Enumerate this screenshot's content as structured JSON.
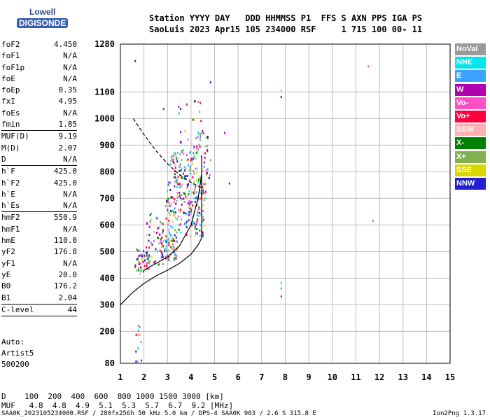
{
  "logo": {
    "line1": "Lowell",
    "line2": "DIGISONDE"
  },
  "header": {
    "line1": "Station YYYY DAY   DDD HHMMSS P1  FFS S AXN PPS IGA PS",
    "line2": "SaoLuis 2023 Apr15 105 234000 RSF     1 715 100 00- 11"
  },
  "params": [
    {
      "name": "foF2",
      "value": "4.450"
    },
    {
      "name": "foF1",
      "value": "N/A"
    },
    {
      "name": "foF1p",
      "value": "N/A"
    },
    {
      "name": "foE",
      "value": "N/A"
    },
    {
      "name": "foEp",
      "value": "0.35"
    },
    {
      "name": "fxI",
      "value": "4.95"
    },
    {
      "name": "foEs",
      "value": "N/A"
    },
    {
      "name": "fmin",
      "value": "1.85"
    },
    {
      "sep": true
    },
    {
      "name": "MUF(D)",
      "value": "9.19"
    },
    {
      "name": "M(D)",
      "value": "2.07"
    },
    {
      "name": "D",
      "value": "N/A"
    },
    {
      "sep": true
    },
    {
      "name": "h`F",
      "value": "425.0"
    },
    {
      "name": "h`F2",
      "value": "425.0"
    },
    {
      "name": "h`E",
      "value": "N/A"
    },
    {
      "name": "h`Es",
      "value": "N/A"
    },
    {
      "sep": true
    },
    {
      "name": "hmF2",
      "value": "550.9"
    },
    {
      "name": "hmF1",
      "value": "N/A"
    },
    {
      "name": "hmE",
      "value": "110.0"
    },
    {
      "name": "yF2",
      "value": "176.8"
    },
    {
      "name": "yF1",
      "value": "N/A"
    },
    {
      "name": "yE",
      "value": "20.0"
    },
    {
      "name": "B0",
      "value": "176.2"
    },
    {
      "name": "B1",
      "value": "2.04"
    },
    {
      "sep": true
    },
    {
      "name": "C-level",
      "value": "44"
    },
    {
      "sep": true
    }
  ],
  "auto": {
    "line1": "Auto:",
    "line2": "Artist5",
    "line3": "500200"
  },
  "legend": [
    {
      "label": "NoVal",
      "color": "#9a9a9a"
    },
    {
      "label": "NNE",
      "color": "#00e5ee"
    },
    {
      "label": "E",
      "color": "#3ea0ff"
    },
    {
      "label": "W",
      "color": "#b000b0"
    },
    {
      "label": "Vo-",
      "color": "#ff50c8"
    },
    {
      "label": "Vo+",
      "color": "#ff0040"
    },
    {
      "label": "SSW",
      "color": "#ffb0b0"
    },
    {
      "label": "X-",
      "color": "#008000"
    },
    {
      "label": "X+",
      "color": "#80b050"
    },
    {
      "label": "SSE",
      "color": "#d8d800"
    },
    {
      "label": "NNW",
      "color": "#2020d0"
    }
  ],
  "footer": {
    "d_line": "D    100  200  400  600  800 1000 1500 3000 [km]",
    "muf_line": "MUF   4.8  4.8  4.9  5.1  5.3  5.7  6.7  9.2 [MHz]",
    "file_line": "SAA0K_2023105234000.RSF / 280fx256h 50 kHz 5.0 km / DPS-4 SAA0K 903 / 2.6 S 315.8 E",
    "version": "Ion2Png 1.3.17"
  },
  "chart_data": {
    "type": "scatter",
    "x_range": [
      1,
      15
    ],
    "y_range": [
      80,
      1280
    ],
    "x_ticks": [
      1,
      2,
      3,
      4,
      5,
      6,
      7,
      8,
      9,
      10,
      11,
      12,
      13,
      14,
      15
    ],
    "y_ticks": [
      80,
      200,
      300,
      400,
      500,
      600,
      700,
      800,
      900,
      1000,
      1100,
      1280
    ],
    "grid": true,
    "lines": [
      {
        "style": "solid",
        "points": [
          [
            1.0,
            300
          ],
          [
            1.5,
            345
          ],
          [
            2.0,
            380
          ],
          [
            2.5,
            408
          ],
          [
            3.0,
            430
          ],
          [
            3.5,
            455
          ],
          [
            4.0,
            490
          ],
          [
            4.3,
            525
          ],
          [
            4.45,
            551
          ],
          [
            4.45,
            700
          ],
          [
            4.45,
            860
          ]
        ]
      },
      {
        "style": "solid",
        "points": [
          [
            2.0,
            430
          ],
          [
            2.5,
            455
          ],
          [
            3.0,
            480
          ],
          [
            3.5,
            520
          ],
          [
            4.0,
            600
          ],
          [
            4.3,
            700
          ],
          [
            4.45,
            790
          ]
        ]
      },
      {
        "style": "dashed",
        "points": [
          [
            1.55,
            1000
          ],
          [
            2.0,
            940
          ],
          [
            2.5,
            880
          ],
          [
            3.0,
            830
          ],
          [
            3.5,
            790
          ],
          [
            4.0,
            760
          ],
          [
            4.45,
            740
          ]
        ]
      }
    ],
    "clusters": [
      {
        "x": [
          1.6,
          2.2
        ],
        "y": [
          420,
          520
        ],
        "n": 55
      },
      {
        "x": [
          2.0,
          2.8
        ],
        "y": [
          450,
          650
        ],
        "n": 55
      },
      {
        "x": [
          2.7,
          3.4
        ],
        "y": [
          470,
          560
        ],
        "n": 70
      },
      {
        "x": [
          2.9,
          4.6
        ],
        "y": [
          560,
          780
        ],
        "n": 210
      },
      {
        "x": [
          3.1,
          4.1
        ],
        "y": [
          780,
          880
        ],
        "n": 70
      },
      {
        "x": [
          4.1,
          4.8
        ],
        "y": [
          700,
          960
        ],
        "n": 60
      },
      {
        "x": [
          3.4,
          4.4
        ],
        "y": [
          850,
          1080
        ],
        "n": 28
      },
      {
        "x": [
          1.6,
          1.9
        ],
        "y": [
          90,
          230
        ],
        "n": 14
      }
    ],
    "outliers": [
      {
        "x": 1.6,
        "y": 1220
      },
      {
        "x": 2.8,
        "y": 1040
      },
      {
        "x": 4.8,
        "y": 1140
      },
      {
        "x": 5.4,
        "y": 950
      },
      {
        "x": 5.6,
        "y": 760
      },
      {
        "x": 7.8,
        "y": 1110
      },
      {
        "x": 7.8,
        "y": 1085
      },
      {
        "x": 7.8,
        "y": 385
      },
      {
        "x": 7.8,
        "y": 365
      },
      {
        "x": 7.8,
        "y": 335
      },
      {
        "x": 11.5,
        "y": 1200
      },
      {
        "x": 11.7,
        "y": 620
      }
    ]
  }
}
